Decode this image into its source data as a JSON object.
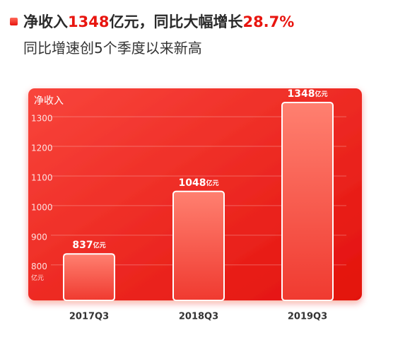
{
  "headline": [
    {
      "text": "净收入",
      "highlight": false
    },
    {
      "text": "1348",
      "highlight": true
    },
    {
      "text": "亿元，同比大幅增长",
      "highlight": false
    },
    {
      "text": "28.7%",
      "highlight": true
    }
  ],
  "subheadline": "同比增速创5个季度以来新高",
  "chart_data": {
    "type": "bar",
    "y_label": "净收入",
    "unit": "亿元",
    "categories": [
      "2017Q3",
      "2018Q3",
      "2019Q3"
    ],
    "values": [
      837,
      1048,
      1348
    ],
    "ylim": [
      680,
      1360
    ],
    "yticks": [
      800,
      900,
      1000,
      1100,
      1200,
      1300
    ],
    "grid": true,
    "color": "#e8150f",
    "highlight_color": "#e8150f"
  }
}
